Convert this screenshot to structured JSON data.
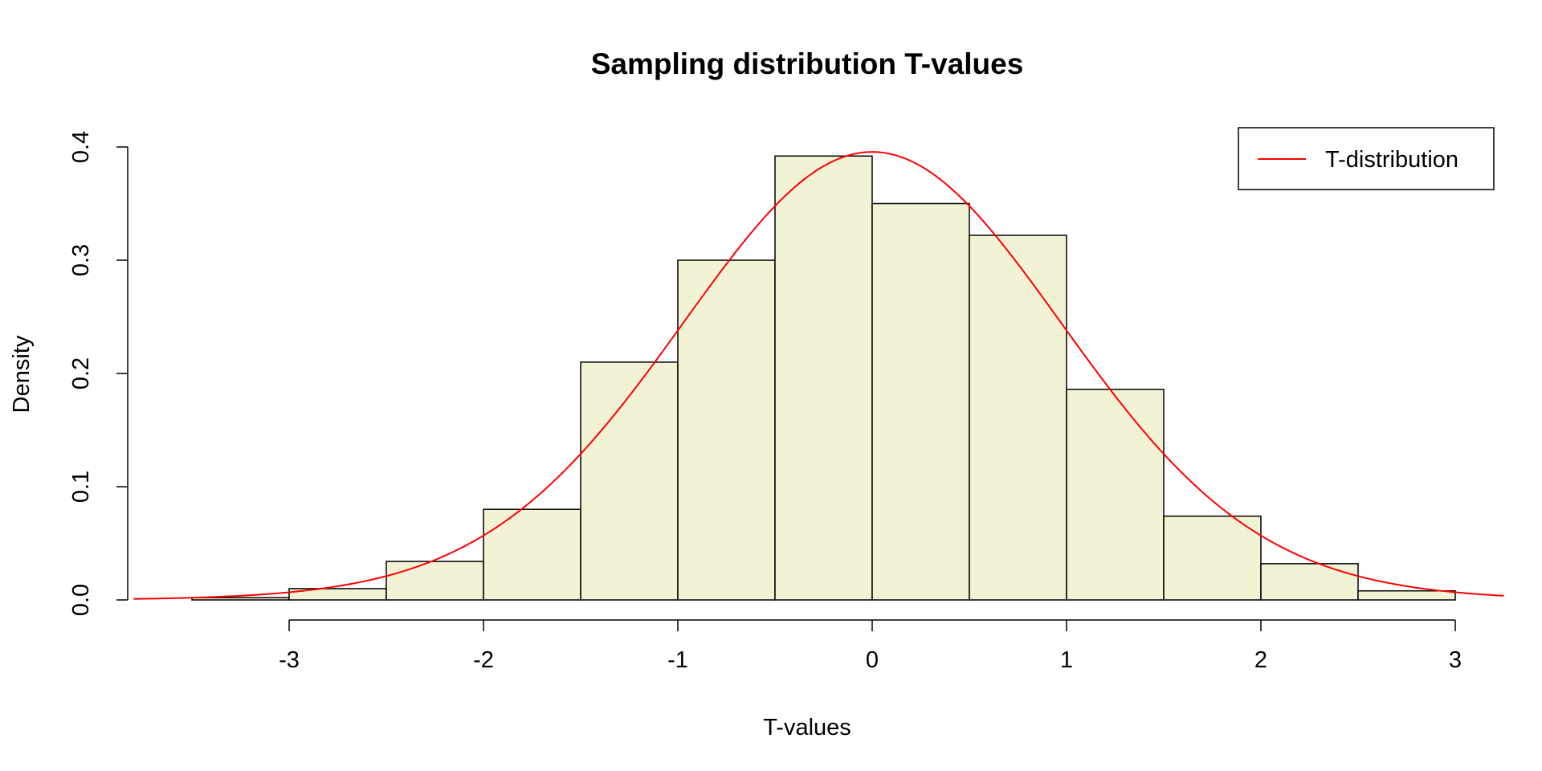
{
  "chart_data": {
    "type": "bar",
    "title": "Sampling distribution T-values",
    "xlabel": "T-values",
    "ylabel": "Density",
    "xlim": [
      -3.8,
      3.25
    ],
    "ylim": [
      0,
      0.4
    ],
    "x_ticks": [
      "-3",
      "-2",
      "-1",
      "0",
      "1",
      "2",
      "3"
    ],
    "y_ticks": [
      "0.0",
      "0.1",
      "0.2",
      "0.3",
      "0.4"
    ],
    "bin_edges": [
      -3.5,
      -3.0,
      -2.5,
      -2.0,
      -1.5,
      -1.0,
      -0.5,
      0.0,
      0.5,
      1.0,
      1.5,
      2.0,
      2.5,
      3.0
    ],
    "values": [
      0.002,
      0.01,
      0.034,
      0.08,
      0.21,
      0.3,
      0.392,
      0.35,
      0.322,
      0.186,
      0.074,
      0.032,
      0.008
    ],
    "bar_color": "#f2f2d5",
    "series": [
      {
        "name": "T-distribution",
        "kind": "density-curve",
        "color": "#ff0000"
      }
    ],
    "legend": {
      "position": "top-right",
      "entries": [
        "T-distribution"
      ]
    },
    "grid": false
  }
}
